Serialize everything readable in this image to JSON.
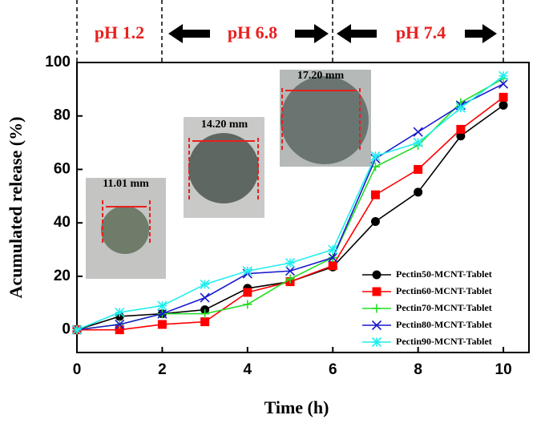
{
  "chart_data": {
    "type": "line",
    "xlabel": "Time (h)",
    "ylabel": "Acumulated release (%)",
    "x": [
      0,
      1,
      2,
      3,
      4,
      5,
      6,
      7,
      8,
      9,
      10
    ],
    "xlim": [
      0,
      10.6
    ],
    "xticks": [
      0,
      2,
      4,
      6,
      8,
      10
    ],
    "ylim": [
      -8.5,
      100
    ],
    "yticks": [
      0,
      20,
      40,
      60,
      80,
      100
    ],
    "legend": "lower right",
    "annotations": [
      "pH 1.2",
      "pH 6.8",
      "pH 7.4",
      "11.01 mm",
      "14.20 mm",
      "17.20 mm"
    ],
    "series": [
      {
        "name": "Pectin50-MCNT-Tablet",
        "color": "#000000",
        "marker": "circle",
        "values": [
          0,
          5,
          6,
          7.5,
          15.5,
          18,
          23.5,
          40.5,
          51.5,
          72.5,
          84
        ]
      },
      {
        "name": "Pectin60-MCNT-Tablet",
        "color": "#ff0000",
        "marker": "square",
        "values": [
          0,
          0,
          2,
          3,
          14,
          18,
          24,
          50.5,
          60,
          75,
          87
        ]
      },
      {
        "name": "Pectin70-MCNT-Tablet",
        "color": "#22dd22",
        "marker": "plus",
        "values": [
          0,
          2,
          6,
          6,
          9.5,
          19,
          27,
          61,
          69,
          85,
          94
        ]
      },
      {
        "name": "Pectin80-MCNT-Tablet",
        "color": "#1a1acc",
        "marker": "x",
        "values": [
          0,
          2,
          6,
          12,
          21,
          22,
          27,
          64,
          74,
          84,
          92
        ]
      },
      {
        "name": "Pectin90-MCNT-Tablet",
        "color": "#22eeee",
        "marker": "star",
        "values": [
          0,
          6.5,
          9,
          17,
          22,
          25,
          30,
          65,
          70,
          83,
          95
        ]
      }
    ]
  }
}
